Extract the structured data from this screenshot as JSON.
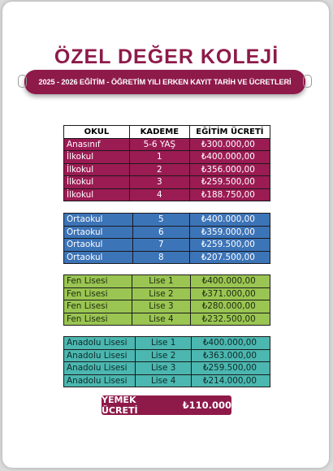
{
  "school_name": "ÖZEL DEĞER KOLEJİ",
  "banner": "2025 - 2026 EĞİTİM - ÖĞRETİM YILI ERKEN KAYIT TARİH VE ÜCRETLERİ",
  "table_headers": {
    "school": "OKUL",
    "grade": "KADEME",
    "fee": "EĞİTİM ÜCRETİ"
  },
  "groups": [
    {
      "name": "primary",
      "rows": [
        {
          "school": "Anasınıf",
          "grade": "5-6 YAŞ",
          "fee": "₺300.000,00"
        },
        {
          "school": "İlkokul",
          "grade": "1",
          "fee": "₺400.000,00"
        },
        {
          "school": "İlkokul",
          "grade": "2",
          "fee": "₺356.000,00"
        },
        {
          "school": "İlkokul",
          "grade": "3",
          "fee": "₺259.500,00"
        },
        {
          "school": "İlkokul",
          "grade": "4",
          "fee": "₺188.750,00"
        }
      ]
    },
    {
      "name": "middle",
      "rows": [
        {
          "school": "Ortaokul",
          "grade": "5",
          "fee": "₺400.000,00"
        },
        {
          "school": "Ortaokul",
          "grade": "6",
          "fee": "₺359.000,00"
        },
        {
          "school": "Ortaokul",
          "grade": "7",
          "fee": "₺259.500,00"
        },
        {
          "school": "Ortaokul",
          "grade": "8",
          "fee": "₺207.500,00"
        }
      ]
    },
    {
      "name": "science",
      "rows": [
        {
          "school": "Fen Lisesi",
          "grade": "Lise 1",
          "fee": "₺400.000,00"
        },
        {
          "school": "Fen Lisesi",
          "grade": "Lise 2",
          "fee": "₺371.000,00"
        },
        {
          "school": "Fen Lisesi",
          "grade": "Lise 3",
          "fee": "₺280.000,00"
        },
        {
          "school": "Fen Lisesi",
          "grade": "Lise 4",
          "fee": "₺232.500,00"
        }
      ]
    },
    {
      "name": "anatolian",
      "rows": [
        {
          "school": "Anadolu Lisesi",
          "grade": "Lise 1",
          "fee": "₺400.000,00"
        },
        {
          "school": "Anadolu Lisesi",
          "grade": "Lise 2",
          "fee": "₺363.000,00"
        },
        {
          "school": "Anadolu Lisesi",
          "grade": "Lise 3",
          "fee": "₺259.500,00"
        },
        {
          "school": "Anadolu Lisesi",
          "grade": "Lise 4",
          "fee": "₺214.000,00"
        }
      ]
    }
  ],
  "meal": {
    "label": "YEMEK ÜCRETİ",
    "amount": "₺110.000"
  },
  "colors": {
    "brand": "#8e1a4a",
    "primary_rows": "#9b1b53",
    "middle_rows": "#3c74b8",
    "science_rows": "#9ac552",
    "anatolian_rows": "#4bb7b0"
  }
}
